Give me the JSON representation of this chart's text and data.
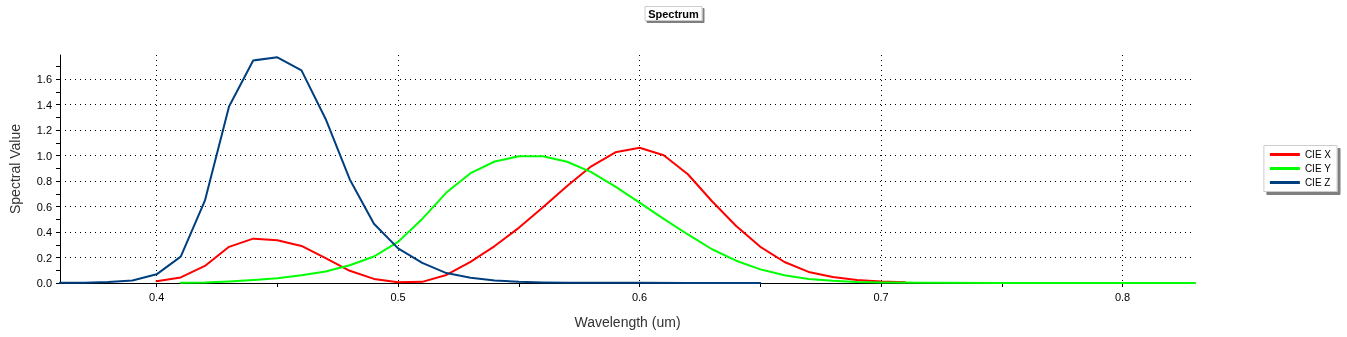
{
  "chart_data": {
    "type": "line",
    "title": "Spectrum",
    "xlabel": "Wavelength (um)",
    "ylabel": "Spectral Value",
    "xlim": [
      0.36,
      0.83
    ],
    "xticks": [
      0.4,
      {
        "value": 0.45,
        "label": null
      },
      0.5,
      {
        "value": 0.55,
        "label": null
      },
      0.6,
      {
        "value": 0.65,
        "label": null
      },
      0.7,
      {
        "value": 0.75,
        "label": null
      },
      0.8
    ],
    "ylim": [
      0,
      1.79
    ],
    "yticks": [
      {
        "value": 0,
        "label": "0.0"
      },
      {
        "value": 0.1,
        "label": null
      },
      0.2,
      {
        "value": 0.3,
        "label": null
      },
      0.4,
      {
        "value": 0.5,
        "label": null
      },
      0.6,
      {
        "value": 0.7,
        "label": null
      },
      0.8,
      {
        "value": 0.9,
        "label": null
      },
      {
        "value": 1,
        "label": "1.0"
      },
      {
        "value": 1.1,
        "label": null
      },
      1.2,
      {
        "value": 1.3,
        "label": null
      },
      1.4,
      {
        "value": 1.5,
        "label": null
      },
      1.6,
      {
        "value": 1.7,
        "label": null
      }
    ],
    "grid": true,
    "legend": "right",
    "marker": "none",
    "line_style": "solid",
    "series": [
      {
        "name": "CIE X",
        "color": "#ff0000",
        "x": [
          0.4,
          0.41,
          0.42,
          0.43,
          0.44,
          0.45,
          0.46,
          0.47,
          0.48,
          0.49,
          0.5,
          0.51,
          0.52,
          0.53,
          0.54,
          0.55,
          0.56,
          0.57,
          0.58,
          0.59,
          0.6,
          0.61,
          0.62,
          0.63,
          0.64,
          0.65,
          0.66,
          0.67,
          0.68,
          0.69,
          0.7,
          0.71
        ],
        "values": [
          0.014,
          0.044,
          0.134,
          0.284,
          0.348,
          0.336,
          0.291,
          0.195,
          0.096,
          0.032,
          0.005,
          0.009,
          0.063,
          0.166,
          0.29,
          0.433,
          0.595,
          0.762,
          0.916,
          1.026,
          1.062,
          1.003,
          0.854,
          0.642,
          0.448,
          0.284,
          0.165,
          0.087,
          0.047,
          0.023,
          0.011,
          0.006
        ]
      },
      {
        "name": "CIE Y",
        "color": "#00ff00",
        "x": [
          0.41,
          0.42,
          0.43,
          0.44,
          0.45,
          0.46,
          0.47,
          0.48,
          0.49,
          0.5,
          0.51,
          0.52,
          0.53,
          0.54,
          0.55,
          0.56,
          0.57,
          0.58,
          0.59,
          0.6,
          0.61,
          0.62,
          0.63,
          0.64,
          0.65,
          0.66,
          0.67,
          0.68,
          0.69,
          0.7,
          0.72,
          0.75,
          0.83
        ],
        "values": [
          0.001,
          0.004,
          0.012,
          0.023,
          0.038,
          0.06,
          0.091,
          0.139,
          0.208,
          0.323,
          0.503,
          0.71,
          0.862,
          0.954,
          0.995,
          0.995,
          0.952,
          0.87,
          0.757,
          0.631,
          0.503,
          0.381,
          0.265,
          0.175,
          0.107,
          0.061,
          0.032,
          0.017,
          0.008,
          0.004,
          0.001,
          0.0,
          0.0
        ]
      },
      {
        "name": "CIE Z",
        "color": "#003f7f",
        "x": [
          0.36,
          0.37,
          0.38,
          0.39,
          0.4,
          0.41,
          0.42,
          0.43,
          0.44,
          0.45,
          0.46,
          0.47,
          0.48,
          0.49,
          0.5,
          0.51,
          0.52,
          0.53,
          0.54,
          0.55,
          0.56,
          0.57,
          0.58,
          0.59,
          0.6,
          0.62,
          0.65
        ],
        "values": [
          0.001,
          0.002,
          0.007,
          0.02,
          0.068,
          0.207,
          0.646,
          1.386,
          1.747,
          1.772,
          1.669,
          1.288,
          0.813,
          0.465,
          0.272,
          0.158,
          0.078,
          0.042,
          0.02,
          0.009,
          0.004,
          0.002,
          0.002,
          0.001,
          0.001,
          0.0,
          0.0
        ]
      }
    ]
  }
}
